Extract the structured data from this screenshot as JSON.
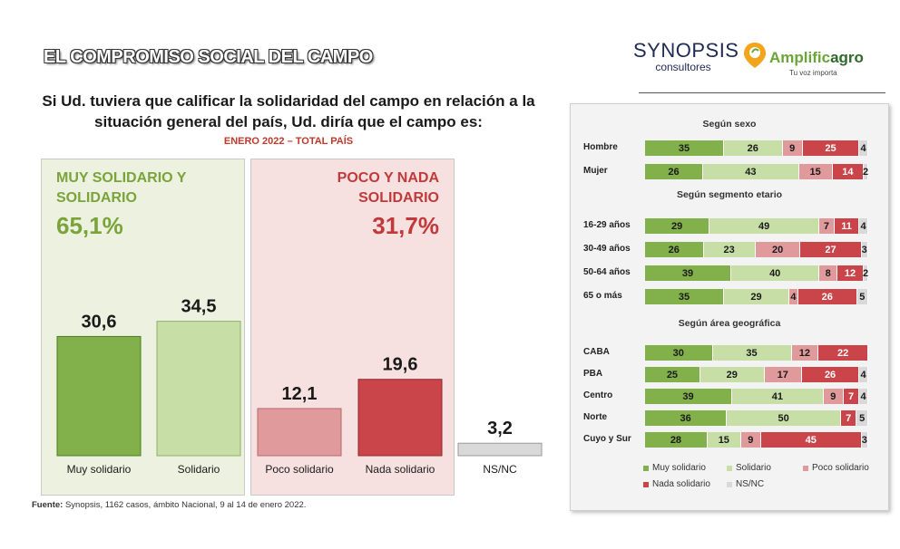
{
  "header": {
    "title": "EL COMPROMISO SOCIAL DEL CAMPO",
    "logo_synopsis": "SYNOPSIS",
    "logo_synopsis_sub": "consultores",
    "logo_amplif": "Amplific",
    "logo_agro": "agro",
    "logo_tagline": "Tu voz importa"
  },
  "question": {
    "line1": "Si Ud. tuviera que calificar la solidaridad del campo en relación a la",
    "line2": "situación general del país, Ud. diría que el campo es:",
    "subtitle": "ENERO 2022 – TOTAL PAÍS"
  },
  "groups": {
    "positive": {
      "label_line1": "MUY SOLIDARIO Y",
      "label_line2": "SOLIDARIO",
      "total": "65,1%"
    },
    "negative": {
      "label_line1": "POCO Y NADA",
      "label_line2": "SOLIDARIO",
      "total": "31,7%"
    }
  },
  "colors": {
    "muy_solidario": "#82b04a",
    "solidario": "#c7dea6",
    "poco_solidario": "#e19a9c",
    "nada_solidario": "#c9454a",
    "ns_nc": "#d9d9d9"
  },
  "chart_data": [
    {
      "type": "bar",
      "title": "ENERO 2022 – TOTAL PAÍS",
      "categories": [
        "Muy solidario",
        "Solidario",
        "Poco solidario",
        "Nada solidario",
        "NS/NC"
      ],
      "values": [
        30.6,
        34.5,
        12.1,
        19.6,
        3.2
      ],
      "value_labels": [
        "30,6",
        "34,5",
        "12,1",
        "19,6",
        "3,2"
      ],
      "ylim": [
        0,
        40
      ]
    },
    {
      "type": "bar",
      "orientation": "horizontal",
      "stacked": true,
      "series_names": [
        "Muy solidario",
        "Solidario",
        "Poco solidario",
        "Nada solidario",
        "NS/NC"
      ],
      "sections": [
        {
          "title": "Según sexo",
          "rows": [
            {
              "label": "Hombre",
              "values": [
                35,
                26,
                9,
                25,
                4
              ]
            },
            {
              "label": "Mujer",
              "values": [
                26,
                43,
                15,
                14,
                2
              ]
            }
          ]
        },
        {
          "title": "Según segmento etario",
          "rows": [
            {
              "label": "16-29 años",
              "values": [
                29,
                49,
                7,
                11,
                4
              ]
            },
            {
              "label": "30-49 años",
              "values": [
                26,
                23,
                20,
                27,
                3
              ]
            },
            {
              "label": "50-64 años",
              "values": [
                39,
                40,
                8,
                12,
                2
              ]
            },
            {
              "label": "65 o más",
              "values": [
                35,
                29,
                4,
                26,
                5
              ]
            }
          ]
        },
        {
          "title": "Según área geográfica",
          "rows": [
            {
              "label": "CABA",
              "values": [
                30,
                35,
                12,
                22,
                0
              ]
            },
            {
              "label": "PBA",
              "values": [
                25,
                29,
                17,
                26,
                4
              ]
            },
            {
              "label": "Centro",
              "values": [
                39,
                41,
                9,
                7,
                4
              ]
            },
            {
              "label": "Norte",
              "values": [
                36,
                50,
                0,
                7,
                5
              ]
            },
            {
              "label": "Cuyo y Sur",
              "values": [
                28,
                15,
                9,
                45,
                3
              ]
            }
          ]
        }
      ],
      "legend": [
        "Muy solidario",
        "Solidario",
        "Poco solidario",
        "Nada solidario",
        "NS/NC"
      ]
    }
  ],
  "footer": {
    "source_label": "Fuente:",
    "source_text": "Synopsis, 1162 casos, ámbito Nacional, 9 al 14 de enero 2022."
  }
}
